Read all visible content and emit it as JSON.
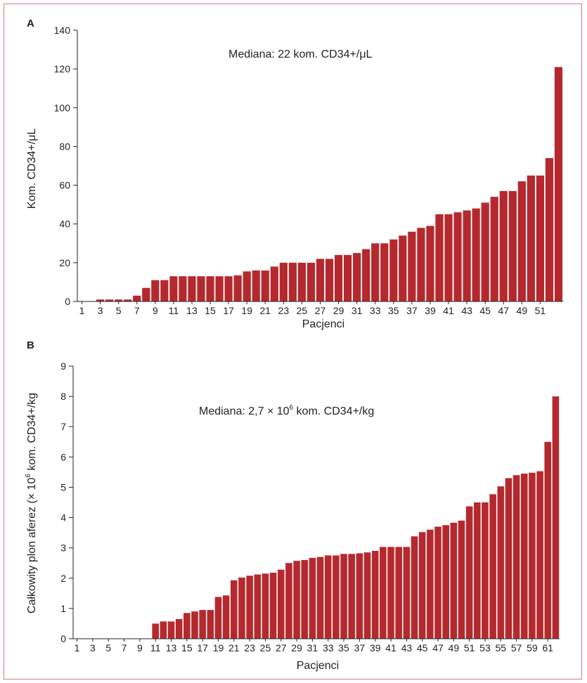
{
  "chart_data": [
    {
      "type": "bar",
      "panel": "A",
      "annotation": "Mediana: 22 kom. CD34+/μL",
      "xlabel": "Pacjenci",
      "ylabel": "Kom. CD34+/μL",
      "ylim": [
        0,
        140
      ],
      "yticks": [
        0,
        20,
        40,
        60,
        80,
        100,
        120,
        140
      ],
      "xtick_labels": [
        "1",
        "3",
        "5",
        "7",
        "9",
        "11",
        "13",
        "15",
        "17",
        "19",
        "21",
        "23",
        "25",
        "27",
        "29",
        "31",
        "33",
        "35",
        "37",
        "39",
        "41",
        "43",
        "45",
        "47",
        "49",
        "51"
      ],
      "color": "#b5292e",
      "values": [
        0,
        0,
        1,
        1,
        1,
        1,
        3,
        7,
        11,
        11,
        13,
        13,
        13,
        13,
        13,
        13,
        13,
        13.5,
        15.5,
        16,
        16,
        18,
        20,
        20,
        20,
        20,
        22,
        22,
        24,
        24,
        25,
        27,
        30,
        30,
        32,
        34,
        36,
        38,
        39,
        45,
        45,
        46,
        47,
        48,
        51,
        54,
        57,
        57,
        62,
        65,
        65,
        74,
        121
      ]
    },
    {
      "type": "bar",
      "panel": "B",
      "annotation_prefix": "Mediana: 2,7 × 10",
      "annotation_exp": "6",
      "annotation_suffix": " kom. CD34+/kg",
      "xlabel": "Pacjenci",
      "ylabel_prefix": "Całkowity plon aferez (× 10",
      "ylabel_exp": "6",
      "ylabel_suffix": " kom. CD34+/kg",
      "ylim": [
        0,
        9
      ],
      "yticks": [
        0,
        1,
        2,
        3,
        4,
        5,
        6,
        7,
        8,
        9
      ],
      "xtick_labels": [
        "1",
        "3",
        "5",
        "7",
        "9",
        "11",
        "13",
        "15",
        "17",
        "19",
        "21",
        "23",
        "25",
        "27",
        "29",
        "31",
        "33",
        "35",
        "37",
        "39",
        "41",
        "43",
        "45",
        "47",
        "49",
        "51",
        "53",
        "55",
        "57",
        "59",
        "61"
      ],
      "color": "#b5292e",
      "values": [
        0,
        0,
        0,
        0,
        0,
        0,
        0,
        0,
        0,
        0,
        0.5,
        0.57,
        0.57,
        0.65,
        0.85,
        0.9,
        0.95,
        0.95,
        1.38,
        1.43,
        1.93,
        2.02,
        2.08,
        2.12,
        2.15,
        2.18,
        2.28,
        2.5,
        2.57,
        2.6,
        2.67,
        2.7,
        2.75,
        2.75,
        2.8,
        2.8,
        2.82,
        2.85,
        2.9,
        3.03,
        3.03,
        3.03,
        3.03,
        3.38,
        3.52,
        3.6,
        3.7,
        3.75,
        3.83,
        3.9,
        4.37,
        4.5,
        4.5,
        4.77,
        5.03,
        5.3,
        5.4,
        5.45,
        5.48,
        5.53,
        6.5,
        8.0
      ]
    }
  ]
}
